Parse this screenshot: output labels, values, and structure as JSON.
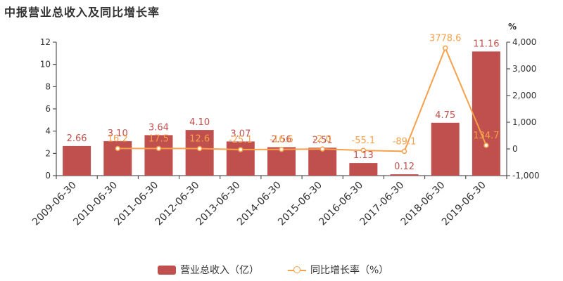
{
  "title": "中报营业总收入及同比增长率",
  "chart_data": {
    "type": "bar",
    "categories": [
      "2009-06-30",
      "2010-06-30",
      "2011-06-30",
      "2012-06-30",
      "2013-06-30",
      "2014-06-30",
      "2015-06-30",
      "2016-06-30",
      "2017-06-30",
      "2018-06-30",
      "2019-06-30"
    ],
    "series": [
      {
        "name": "营业总收入（亿）",
        "type": "bar",
        "axis": "left",
        "values": [
          2.66,
          3.1,
          3.64,
          4.1,
          3.07,
          2.56,
          2.51,
          1.13,
          0.12,
          4.75,
          11.16
        ],
        "labels": [
          "2.66",
          "3.10",
          "3.64",
          "4.10",
          "3.07",
          "2.56",
          "2.51",
          "1.13",
          "0.12",
          "4.75",
          "11.16"
        ],
        "color": "#c0504d"
      },
      {
        "name": "同比增长率（%）",
        "type": "line",
        "axis": "right",
        "values": [
          null,
          16.2,
          17.5,
          12.6,
          -25.1,
          -16.6,
          -2.0,
          -55.1,
          -89.1,
          3778.6,
          134.7
        ],
        "labels": [
          "",
          "16.2",
          "17.5",
          "12.6",
          "-25.1",
          "-16.6",
          "-2.0",
          "-55.1",
          "-89.1",
          "3778.6",
          "134.7"
        ],
        "color": "#f5a04a"
      }
    ],
    "y_left": {
      "min": 0,
      "max": 12,
      "ticks": [
        0,
        2,
        4,
        6,
        8,
        10,
        12
      ],
      "tick_labels": [
        "0",
        "2",
        "4",
        "6",
        "8",
        "10",
        "12"
      ]
    },
    "y_right": {
      "min": -1000,
      "max": 4000,
      "ticks": [
        -1000,
        0,
        1000,
        2000,
        3000,
        4000
      ],
      "tick_labels": [
        "-1,000",
        "0",
        "1,000",
        "2,000",
        "3,000",
        "4,000"
      ],
      "unit": "%"
    },
    "xlabel": "",
    "ylabel": "",
    "grid": false,
    "legend": "bottom-center"
  },
  "legend": {
    "bar_label": "营业总收入（亿）",
    "line_label": "同比增长率（%）"
  }
}
